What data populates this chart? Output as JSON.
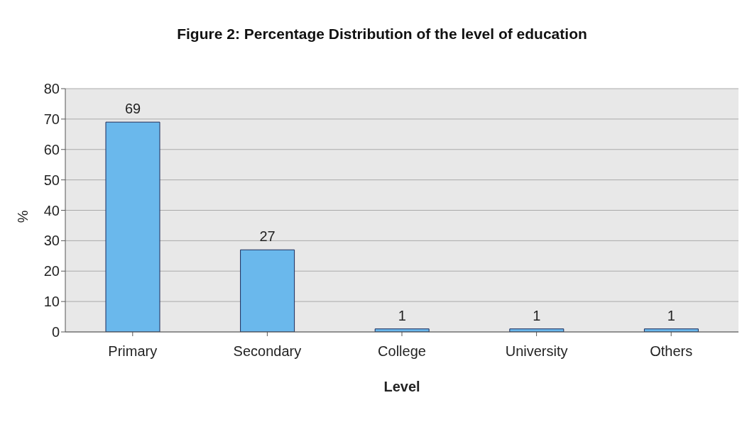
{
  "chart_data": {
    "type": "bar",
    "title": "Figure 2: Percentage Distribution of the level of education",
    "xlabel": "Level",
    "ylabel": "%",
    "categories": [
      "Primary",
      "Secondary",
      "College",
      "University",
      "Others"
    ],
    "values": [
      69,
      27,
      1,
      1,
      1
    ],
    "color": "#6ab8ec",
    "ylim": [
      0,
      80
    ],
    "yticks": [
      0,
      10,
      20,
      30,
      40,
      50,
      60,
      70,
      80
    ],
    "grid": "y",
    "data_labels": true
  }
}
